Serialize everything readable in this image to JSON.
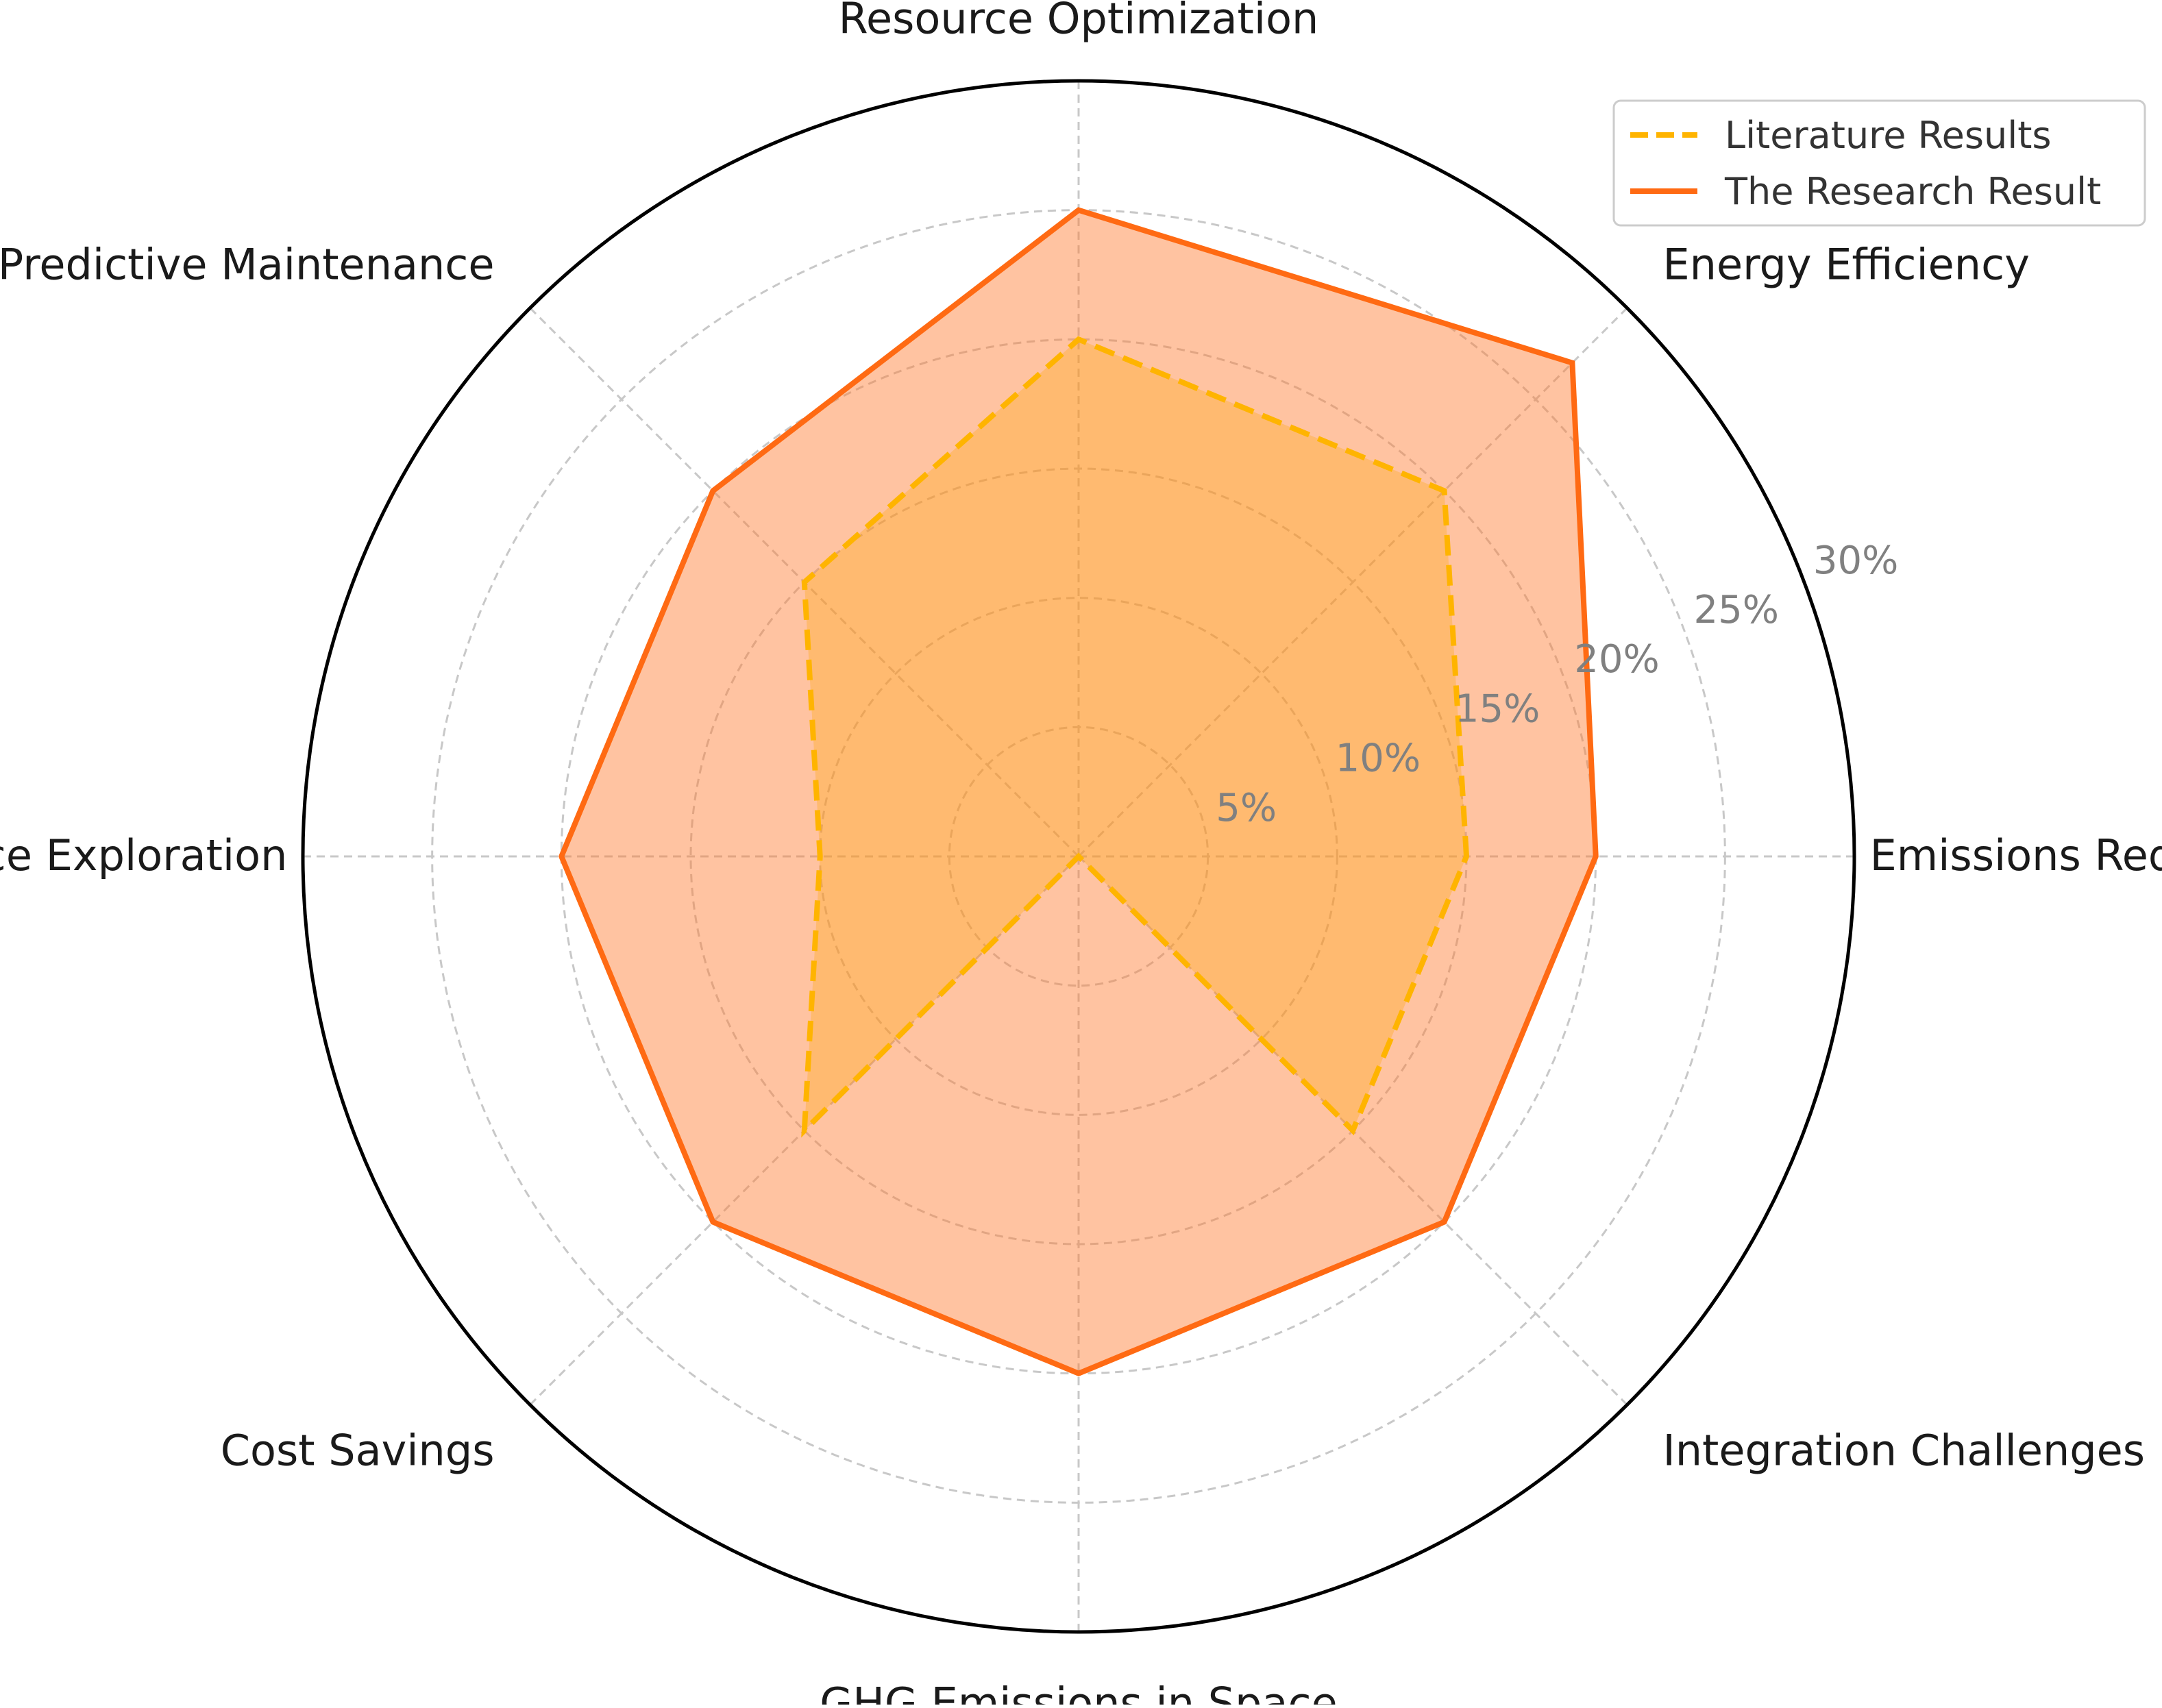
{
  "chart_data": {
    "type": "radar",
    "categories": [
      "Emissions Reduction",
      "Energy Efficiency",
      "Resource Optimization",
      "Predictive Maintenance",
      "AI in Space Exploration",
      "Cost Savings",
      "GHG Emissions in Space",
      "Integration Challenges"
    ],
    "series": [
      {
        "name": "Literature Results",
        "values": [
          15,
          20,
          20,
          15,
          10,
          15,
          0,
          15
        ],
        "line_color": "#ffb400",
        "line_style": "dashed",
        "fill_color": "#ffa500"
      },
      {
        "name": "The Research Result",
        "values": [
          20,
          27,
          25,
          20,
          20,
          20,
          20,
          20
        ],
        "line_color": "#ff6a13",
        "line_style": "solid",
        "fill_color": "#ff7a2f"
      }
    ],
    "r_ticks": [
      "5%",
      "10%",
      "15%",
      "20%",
      "25%",
      "30%"
    ],
    "r_tick_values": [
      5,
      10,
      15,
      20,
      25,
      30
    ],
    "rlim": [
      0,
      30
    ],
    "grid": true,
    "legend_position": "top-right"
  }
}
